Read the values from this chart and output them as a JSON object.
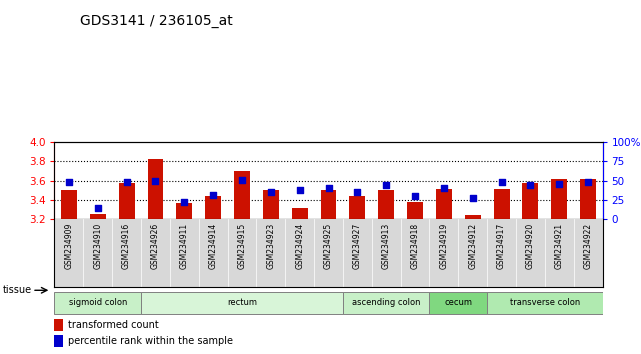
{
  "title": "GDS3141 / 236105_at",
  "samples": [
    "GSM234909",
    "GSM234910",
    "GSM234916",
    "GSM234926",
    "GSM234911",
    "GSM234914",
    "GSM234915",
    "GSM234923",
    "GSM234924",
    "GSM234925",
    "GSM234927",
    "GSM234913",
    "GSM234918",
    "GSM234919",
    "GSM234912",
    "GSM234917",
    "GSM234920",
    "GSM234921",
    "GSM234922"
  ],
  "bar_values": [
    3.5,
    3.26,
    3.57,
    3.82,
    3.37,
    3.44,
    3.7,
    3.5,
    3.32,
    3.5,
    3.44,
    3.5,
    3.38,
    3.51,
    3.25,
    3.51,
    3.57,
    3.62,
    3.62
  ],
  "percentile_values": [
    48,
    15,
    48,
    50,
    22,
    32,
    51,
    35,
    38,
    41,
    35,
    44,
    30,
    41,
    28,
    48,
    44,
    46,
    48
  ],
  "ylim_left": [
    3.2,
    4.0
  ],
  "ylim_right": [
    0,
    100
  ],
  "yticks_left": [
    3.2,
    3.4,
    3.6,
    3.8,
    4.0
  ],
  "yticks_right": [
    0,
    25,
    50,
    75,
    100
  ],
  "ytick_labels_right": [
    "0",
    "25",
    "50",
    "75",
    "100%"
  ],
  "tissue_groups": [
    {
      "label": "sigmoid colon",
      "start": 0,
      "end": 3,
      "color": "#c8f0c8"
    },
    {
      "label": "rectum",
      "start": 3,
      "end": 10,
      "color": "#d8f5d8"
    },
    {
      "label": "ascending colon",
      "start": 10,
      "end": 13,
      "color": "#c8f0c8"
    },
    {
      "label": "cecum",
      "start": 13,
      "end": 15,
      "color": "#80d880"
    },
    {
      "label": "transverse colon",
      "start": 15,
      "end": 19,
      "color": "#b0eab0"
    }
  ],
  "bar_color": "#cc1100",
  "percentile_color": "#0000cc",
  "bar_bottom": 3.2,
  "bar_width": 0.55,
  "legend_items": [
    {
      "label": "transformed count",
      "color": "#cc1100"
    },
    {
      "label": "percentile rank within the sample",
      "color": "#0000cc"
    }
  ],
  "tissue_label": "tissue",
  "xticklabel_bg": "#d8d8d8"
}
